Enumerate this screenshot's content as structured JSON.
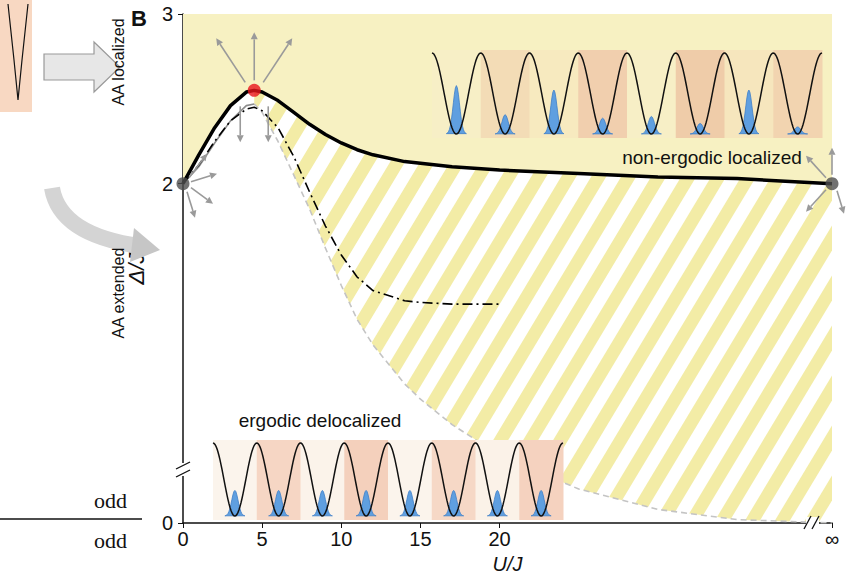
{
  "chart_data": {
    "type": "line",
    "title": "B",
    "x_label": "U/J",
    "y_label": "Δ/J",
    "xlim": [
      0,
      41
    ],
    "xticks": [
      0,
      5,
      10,
      15,
      20,
      {
        "value": 41,
        "label": "∞"
      }
    ],
    "ylim": [
      0,
      3
    ],
    "yticks": [
      0,
      2,
      3
    ],
    "grid": false,
    "annotations": [
      "AA localized",
      "AA extended",
      "non-ergodic localized",
      "ergodic delocalized",
      "odd",
      "odd"
    ],
    "x": [
      0,
      1,
      2,
      3,
      4,
      4.5,
      5,
      6,
      7,
      8,
      9,
      10,
      11,
      12,
      14,
      15,
      17,
      20,
      25,
      30,
      35,
      41
    ],
    "series": [
      {
        "type": "area",
        "color": "#000000",
        "line_style": "solid",
        "values": [
          2.0,
          2.17,
          2.33,
          2.46,
          2.54,
          2.55,
          2.54,
          2.49,
          2.42,
          2.35,
          2.29,
          2.24,
          2.2,
          2.17,
          2.13,
          2.12,
          2.1,
          2.08,
          2.06,
          2.04,
          2.03,
          2.0
        ]
      },
      {
        "type": "band",
        "color": "#c4c4c4",
        "line_style": "dashed",
        "values": [
          null,
          null,
          null,
          null,
          null,
          2.47,
          2.42,
          2.25,
          2.05,
          1.85,
          1.62,
          1.4,
          1.2,
          1.05,
          0.82,
          0.73,
          0.58,
          0.4,
          0.2,
          0.08,
          0.02,
          0
        ]
      },
      {
        "type": "line",
        "color": "#8c8c8c",
        "line_style": "solid",
        "values": [
          2.0,
          2.1,
          2.24,
          2.37,
          2.46,
          2.47,
          null,
          null,
          null,
          null,
          null,
          null,
          null,
          null,
          null,
          null,
          null,
          null,
          null,
          null,
          null,
          null
        ]
      },
      {
        "type": "line",
        "color": "#000000",
        "line_style": "dashdot",
        "values": [
          2.0,
          2.11,
          2.25,
          2.37,
          2.44,
          2.45,
          2.43,
          2.33,
          2.16,
          1.95,
          1.75,
          1.58,
          1.45,
          1.37,
          1.31,
          1.3,
          1.29,
          1.29,
          null,
          null,
          null,
          null
        ]
      },
      {
        "type": "scatter",
        "color": "#e8141c",
        "marker": "circle",
        "values": [
          null,
          null,
          null,
          null,
          null,
          2.55,
          null,
          null,
          null,
          null,
          null,
          null,
          null,
          null,
          null,
          null,
          null,
          null,
          null,
          null,
          null,
          null
        ]
      },
      {
        "type": "scatter",
        "color": "#4d4d4d",
        "marker": "circle",
        "values": [
          2.0,
          null,
          null,
          null,
          null,
          null,
          null,
          null,
          null,
          null,
          null,
          null,
          null,
          null,
          null,
          null,
          null,
          null,
          null,
          null,
          null,
          2.0
        ]
      }
    ]
  }
}
